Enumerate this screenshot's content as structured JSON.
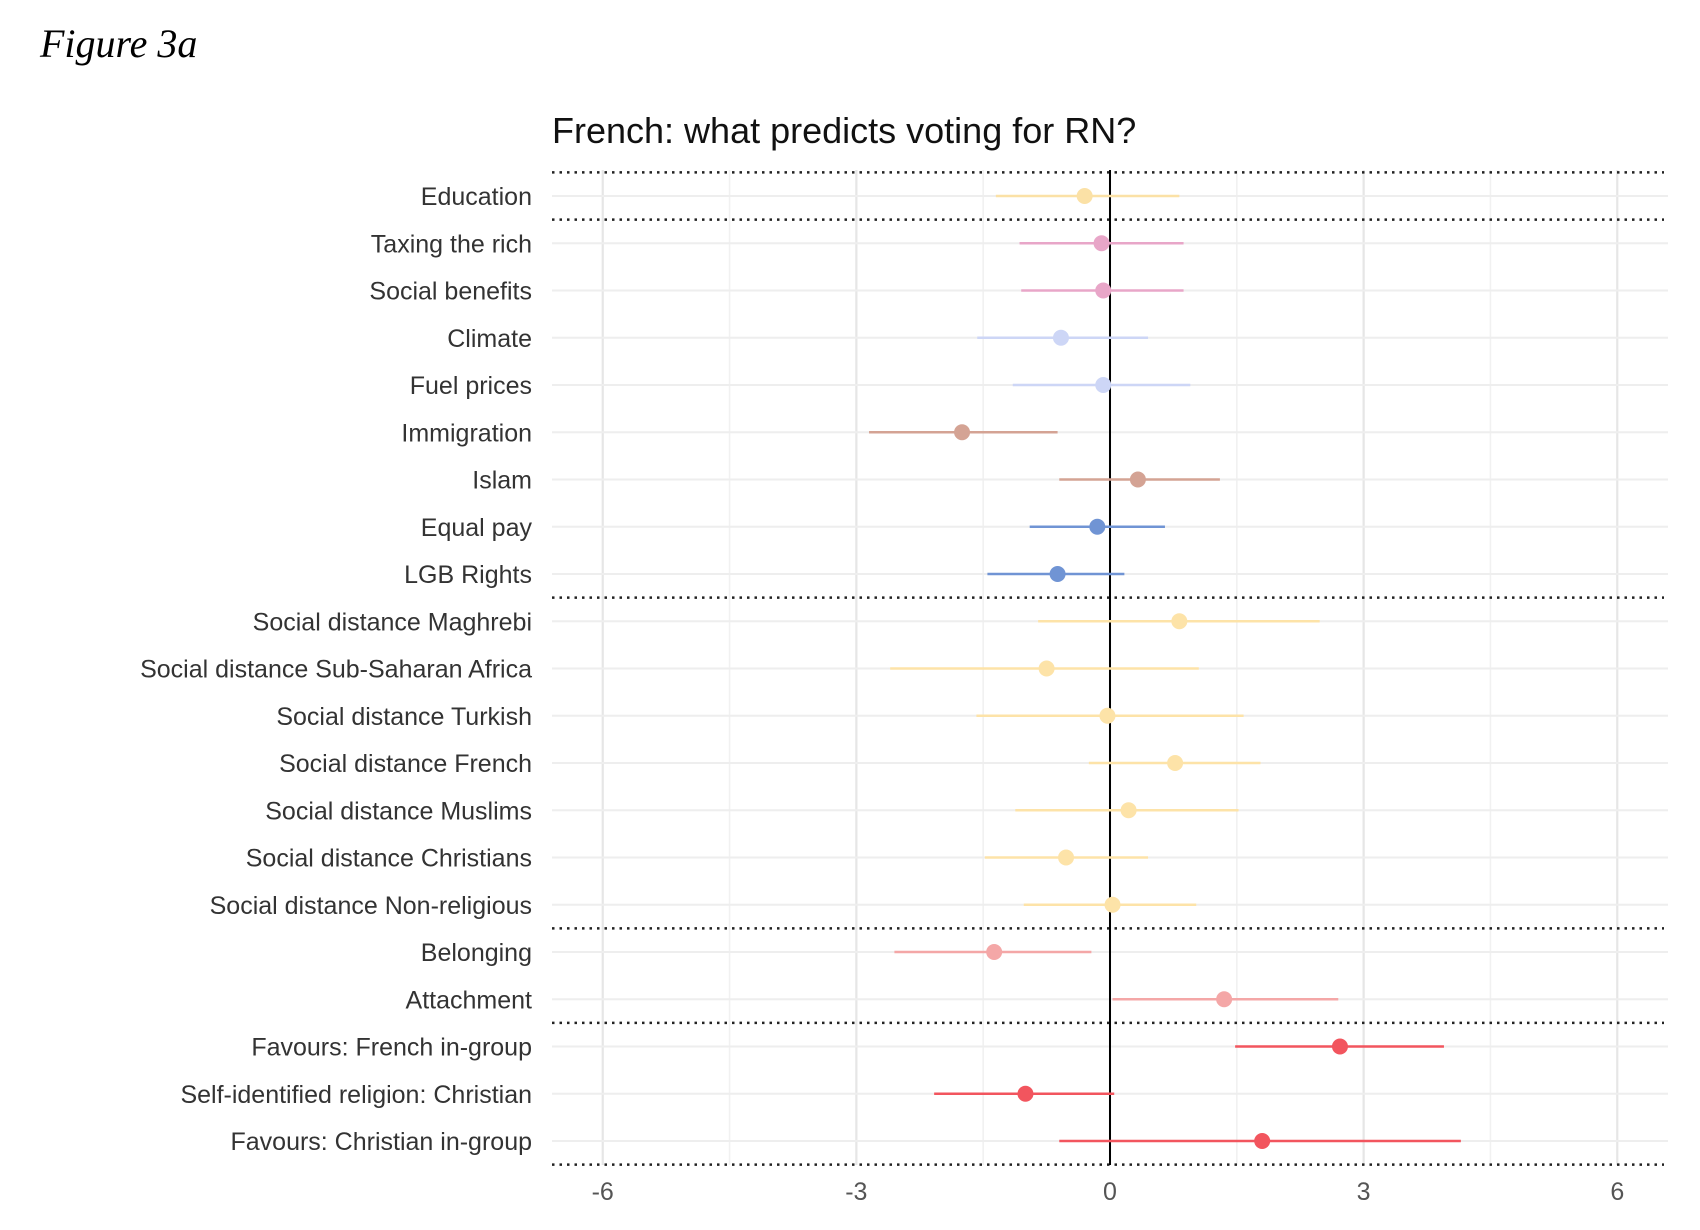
{
  "figure_label": "Figure 3a",
  "chart_data": {
    "type": "coefficient-plot",
    "title": "French: what predicts voting for RN?",
    "xlabel": "",
    "ylabel": "",
    "xlim": [
      -6.6,
      6.6
    ],
    "xticks": [
      -6,
      -3,
      0,
      3,
      6
    ],
    "grid": true,
    "zero_line": 0,
    "separators_after": [
      "Education",
      "LGB Rights",
      "Social distance Non-religious",
      "Attachment",
      "Favours: Christian in-group"
    ],
    "separators_before_first": true,
    "points": [
      {
        "label": "Education",
        "estimate": -0.3,
        "low": -1.35,
        "high": 0.82,
        "color": "#fbe1a6"
      },
      {
        "label": "Taxing the rich",
        "estimate": -0.1,
        "low": -1.07,
        "high": 0.87,
        "color": "#e8a6c8"
      },
      {
        "label": "Social benefits",
        "estimate": -0.08,
        "low": -1.05,
        "high": 0.87,
        "color": "#e8a6c8"
      },
      {
        "label": "Climate",
        "estimate": -0.58,
        "low": -1.57,
        "high": 0.45,
        "color": "#cdd6f6"
      },
      {
        "label": "Fuel prices",
        "estimate": -0.08,
        "low": -1.15,
        "high": 0.95,
        "color": "#cdd6f6"
      },
      {
        "label": "Immigration",
        "estimate": -1.75,
        "low": -2.85,
        "high": -0.62,
        "color": "#d4a394"
      },
      {
        "label": "Islam",
        "estimate": 0.33,
        "low": -0.6,
        "high": 1.3,
        "color": "#d4a394"
      },
      {
        "label": "Equal pay",
        "estimate": -0.15,
        "low": -0.95,
        "high": 0.65,
        "color": "#7094d4"
      },
      {
        "label": "LGB Rights",
        "estimate": -0.62,
        "low": -1.45,
        "high": 0.17,
        "color": "#7094d4"
      },
      {
        "label": "Social distance Maghrebi",
        "estimate": 0.82,
        "low": -0.85,
        "high": 2.48,
        "color": "#fde3a8"
      },
      {
        "label": "Social distance Sub-Saharan Africa",
        "estimate": -0.75,
        "low": -2.6,
        "high": 1.05,
        "color": "#fde3a8"
      },
      {
        "label": "Social distance Turkish",
        "estimate": -0.03,
        "low": -1.58,
        "high": 1.58,
        "color": "#fde3a8"
      },
      {
        "label": "Social distance French",
        "estimate": 0.77,
        "low": -0.25,
        "high": 1.78,
        "color": "#fde3a8"
      },
      {
        "label": "Social distance Muslims",
        "estimate": 0.22,
        "low": -1.12,
        "high": 1.52,
        "color": "#fde3a8"
      },
      {
        "label": "Social distance Christians",
        "estimate": -0.52,
        "low": -1.48,
        "high": 0.45,
        "color": "#fde3a8"
      },
      {
        "label": "Social distance Non-religious",
        "estimate": 0.03,
        "low": -1.02,
        "high": 1.02,
        "color": "#fde3a8"
      },
      {
        "label": "Belonging",
        "estimate": -1.37,
        "low": -2.55,
        "high": -0.22,
        "color": "#f4a7a7"
      },
      {
        "label": "Attachment",
        "estimate": 1.35,
        "low": 0.03,
        "high": 2.7,
        "color": "#f4a7a7"
      },
      {
        "label": "Favours: French in-group",
        "estimate": 2.72,
        "low": 1.48,
        "high": 3.95,
        "color": "#f2555e"
      },
      {
        "label": "Self-identified religion: Christian",
        "estimate": -1.0,
        "low": -2.08,
        "high": 0.05,
        "color": "#f2555e"
      },
      {
        "label": "Favours: Christian in-group",
        "estimate": 1.8,
        "low": -0.6,
        "high": 4.15,
        "color": "#f2555e"
      }
    ]
  }
}
